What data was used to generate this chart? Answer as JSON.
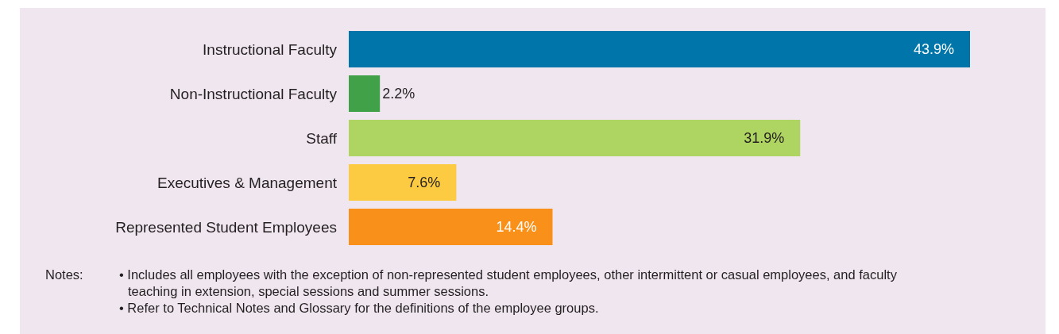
{
  "chart_data": {
    "type": "bar",
    "orientation": "horizontal",
    "categories": [
      "Instructional Faculty",
      "Non-Instructional Faculty",
      "Staff",
      "Executives & Management",
      "Represented Student Employees"
    ],
    "values": [
      43.9,
      2.2,
      31.9,
      7.6,
      14.4
    ],
    "colors": [
      "#0075a9",
      "#41a148",
      "#aed462",
      "#fdcb41",
      "#f8901a"
    ],
    "value_labels": [
      "43.9%",
      "2.2%",
      "31.9%",
      "7.6%",
      "14.4%"
    ],
    "tick_labels": "y",
    "annotations": [
      "Notes:",
      "• Includes all employees with the exception of non-represented student employees, other intermittent or casual employees, and faculty teaching in extension, special sessions and summer sessions.",
      "• Refer to Technical Notes and Glossary for the definitions of the employee groups."
    ]
  }
}
